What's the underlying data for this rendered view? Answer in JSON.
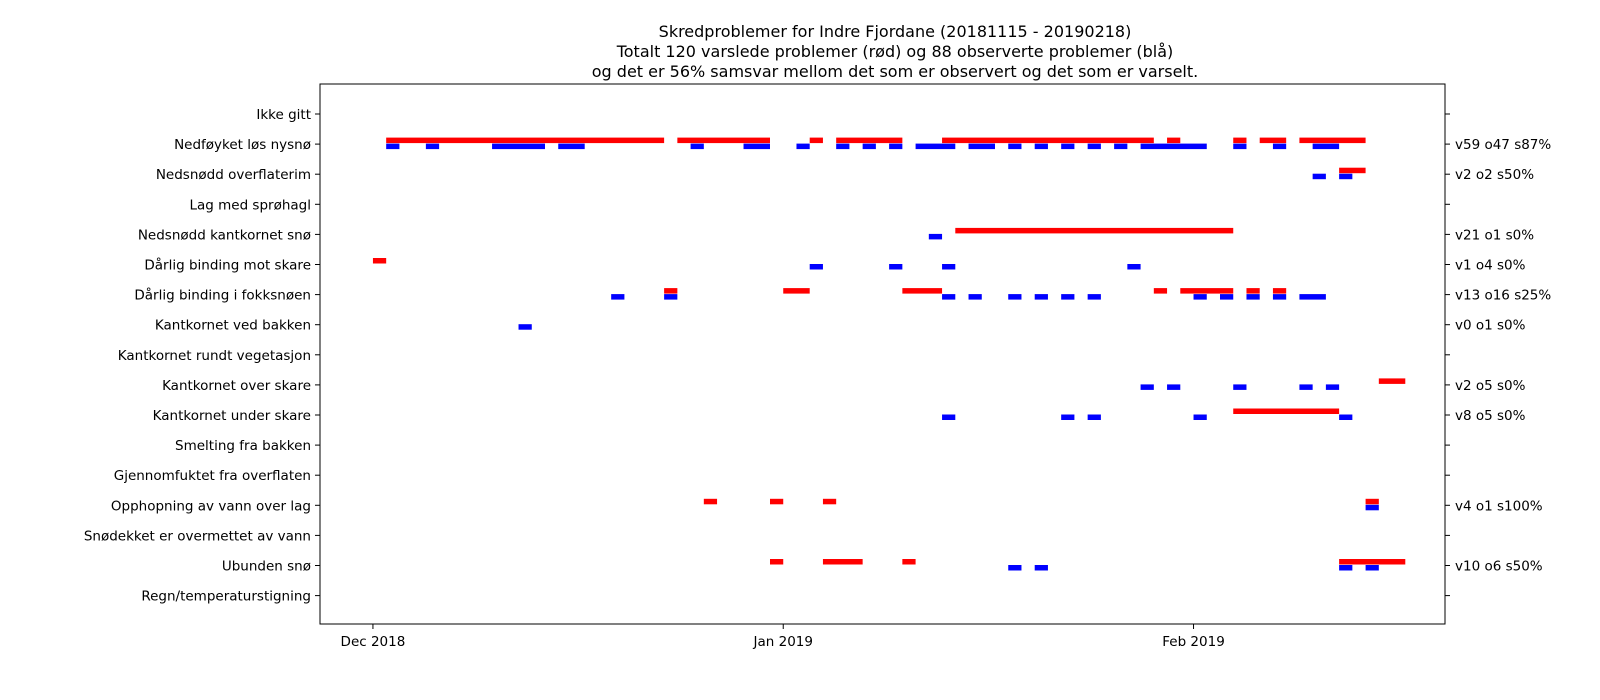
{
  "title_lines": [
    "Skredproblemer for Indre Fjordane (20181115 - 20190218)",
    "Totalt 120 varslede problemer (rød) og 88 observerte problemer (blå)",
    "og det er 56% samsvar mellom det som er observert og det som er varselt."
  ],
  "chart_data": {
    "type": "gantt",
    "x_axis": {
      "type": "date",
      "range": [
        "2018-11-27",
        "2019-02-20"
      ],
      "ticks": [
        {
          "date": "2018-12-01",
          "label": "Dec 2018"
        },
        {
          "date": "2019-01-01",
          "label": "Jan 2019"
        },
        {
          "date": "2019-02-01",
          "label": "Feb 2019"
        }
      ]
    },
    "grid": false,
    "colors": {
      "varslet": "#ff0000",
      "observert": "#0000ff"
    },
    "categories": [
      {
        "label": "Ikke gitt",
        "stats": "",
        "forecast": [],
        "observed": []
      },
      {
        "label": "Nedføyket løs nysnø",
        "stats": "v59 o47 s87%",
        "forecast": [
          [
            "2018-12-02",
            "2018-12-23"
          ],
          [
            "2018-12-24",
            "2018-12-31"
          ],
          [
            "2019-01-03",
            "2019-01-04"
          ],
          [
            "2019-01-05",
            "2019-01-10"
          ],
          [
            "2019-01-13",
            "2019-01-29"
          ],
          [
            "2019-01-30",
            "2019-01-31"
          ],
          [
            "2019-02-04",
            "2019-02-05"
          ],
          [
            "2019-02-06",
            "2019-02-08"
          ],
          [
            "2019-02-09",
            "2019-02-14"
          ]
        ],
        "observed": [
          [
            "2018-12-02",
            "2018-12-03"
          ],
          [
            "2018-12-05",
            "2018-12-06"
          ],
          [
            "2018-12-10",
            "2018-12-14"
          ],
          [
            "2018-12-15",
            "2018-12-17"
          ],
          [
            "2018-12-25",
            "2018-12-26"
          ],
          [
            "2018-12-29",
            "2018-12-31"
          ],
          [
            "2019-01-02",
            "2019-01-03"
          ],
          [
            "2019-01-05",
            "2019-01-06"
          ],
          [
            "2019-01-07",
            "2019-01-08"
          ],
          [
            "2019-01-09",
            "2019-01-10"
          ],
          [
            "2019-01-11",
            "2019-01-14"
          ],
          [
            "2019-01-15",
            "2019-01-17"
          ],
          [
            "2019-01-18",
            "2019-01-19"
          ],
          [
            "2019-01-20",
            "2019-01-21"
          ],
          [
            "2019-01-22",
            "2019-01-23"
          ],
          [
            "2019-01-24",
            "2019-01-25"
          ],
          [
            "2019-01-26",
            "2019-01-27"
          ],
          [
            "2019-01-28",
            "2019-02-02"
          ],
          [
            "2019-02-04",
            "2019-02-05"
          ],
          [
            "2019-02-07",
            "2019-02-08"
          ],
          [
            "2019-02-10",
            "2019-02-12"
          ]
        ]
      },
      {
        "label": "Nedsnødd overflaterim",
        "stats": "v2 o2 s50%",
        "forecast": [
          [
            "2019-02-12",
            "2019-02-14"
          ]
        ],
        "observed": [
          [
            "2019-02-10",
            "2019-02-11"
          ],
          [
            "2019-02-12",
            "2019-02-13"
          ]
        ]
      },
      {
        "label": "Lag med sprøhagl",
        "stats": "",
        "forecast": [],
        "observed": []
      },
      {
        "label": "Nedsnødd kantkornet snø",
        "stats": "v21 o1 s0%",
        "forecast": [
          [
            "2019-01-14",
            "2019-02-04"
          ]
        ],
        "observed": [
          [
            "2019-01-12",
            "2019-01-13"
          ]
        ]
      },
      {
        "label": "Dårlig binding mot skare",
        "stats": "v1 o4 s0%",
        "forecast": [
          [
            "2018-12-01",
            "2018-12-02"
          ]
        ],
        "observed": [
          [
            "2019-01-03",
            "2019-01-04"
          ],
          [
            "2019-01-09",
            "2019-01-10"
          ],
          [
            "2019-01-13",
            "2019-01-14"
          ],
          [
            "2019-01-27",
            "2019-01-28"
          ]
        ]
      },
      {
        "label": "Dårlig binding i fokksnøen",
        "stats": "v13 o16 s25%",
        "forecast": [
          [
            "2018-12-23",
            "2018-12-24"
          ],
          [
            "2019-01-01",
            "2019-01-03"
          ],
          [
            "2019-01-10",
            "2019-01-13"
          ],
          [
            "2019-01-29",
            "2019-01-30"
          ],
          [
            "2019-01-31",
            "2019-02-04"
          ],
          [
            "2019-02-05",
            "2019-02-06"
          ],
          [
            "2019-02-07",
            "2019-02-08"
          ]
        ],
        "observed": [
          [
            "2018-12-19",
            "2018-12-20"
          ],
          [
            "2018-12-23",
            "2018-12-24"
          ],
          [
            "2019-01-13",
            "2019-01-14"
          ],
          [
            "2019-01-15",
            "2019-01-16"
          ],
          [
            "2019-01-18",
            "2019-01-19"
          ],
          [
            "2019-01-20",
            "2019-01-21"
          ],
          [
            "2019-01-22",
            "2019-01-23"
          ],
          [
            "2019-01-24",
            "2019-01-25"
          ],
          [
            "2019-02-01",
            "2019-02-02"
          ],
          [
            "2019-02-03",
            "2019-02-04"
          ],
          [
            "2019-02-05",
            "2019-02-06"
          ],
          [
            "2019-02-07",
            "2019-02-08"
          ],
          [
            "2019-02-09",
            "2019-02-11"
          ]
        ]
      },
      {
        "label": "Kantkornet ved bakken",
        "stats": "v0 o1 s0%",
        "forecast": [],
        "observed": [
          [
            "2018-12-12",
            "2018-12-13"
          ]
        ]
      },
      {
        "label": "Kantkornet rundt vegetasjon",
        "stats": "",
        "forecast": [],
        "observed": []
      },
      {
        "label": "Kantkornet over skare",
        "stats": "v2 o5 s0%",
        "forecast": [
          [
            "2019-02-15",
            "2019-02-17"
          ]
        ],
        "observed": [
          [
            "2019-01-28",
            "2019-01-29"
          ],
          [
            "2019-01-30",
            "2019-01-31"
          ],
          [
            "2019-02-04",
            "2019-02-05"
          ],
          [
            "2019-02-09",
            "2019-02-10"
          ],
          [
            "2019-02-11",
            "2019-02-12"
          ]
        ]
      },
      {
        "label": "Kantkornet under skare",
        "stats": "v8 o5 s0%",
        "forecast": [
          [
            "2019-02-04",
            "2019-02-12"
          ]
        ],
        "observed": [
          [
            "2019-01-13",
            "2019-01-14"
          ],
          [
            "2019-01-22",
            "2019-01-23"
          ],
          [
            "2019-01-24",
            "2019-01-25"
          ],
          [
            "2019-02-01",
            "2019-02-02"
          ],
          [
            "2019-02-12",
            "2019-02-13"
          ]
        ]
      },
      {
        "label": "Smelting fra bakken",
        "stats": "",
        "forecast": [],
        "observed": []
      },
      {
        "label": "Gjennomfuktet fra overflaten",
        "stats": "",
        "forecast": [],
        "observed": []
      },
      {
        "label": "Opphopning av vann over lag",
        "stats": "v4 o1 s100%",
        "forecast": [
          [
            "2018-12-26",
            "2018-12-27"
          ],
          [
            "2018-12-31",
            "2019-01-01"
          ],
          [
            "2019-01-04",
            "2019-01-05"
          ],
          [
            "2019-02-14",
            "2019-02-15"
          ]
        ],
        "observed": [
          [
            "2019-02-14",
            "2019-02-15"
          ]
        ]
      },
      {
        "label": "Snødekket er overmettet av vann",
        "stats": "",
        "forecast": [],
        "observed": []
      },
      {
        "label": "Ubunden snø",
        "stats": "v10 o6 s50%",
        "forecast": [
          [
            "2018-12-31",
            "2019-01-01"
          ],
          [
            "2019-01-04",
            "2019-01-07"
          ],
          [
            "2019-01-10",
            "2019-01-11"
          ],
          [
            "2019-02-12",
            "2019-02-17"
          ]
        ],
        "observed": [
          [
            "2019-01-18",
            "2019-01-19"
          ],
          [
            "2019-01-20",
            "2019-01-21"
          ],
          [
            "2019-02-12",
            "2019-02-13"
          ],
          [
            "2019-02-14",
            "2019-02-15"
          ]
        ]
      },
      {
        "label": "Regn/temperaturstigning",
        "stats": "",
        "forecast": [],
        "observed": []
      }
    ]
  }
}
